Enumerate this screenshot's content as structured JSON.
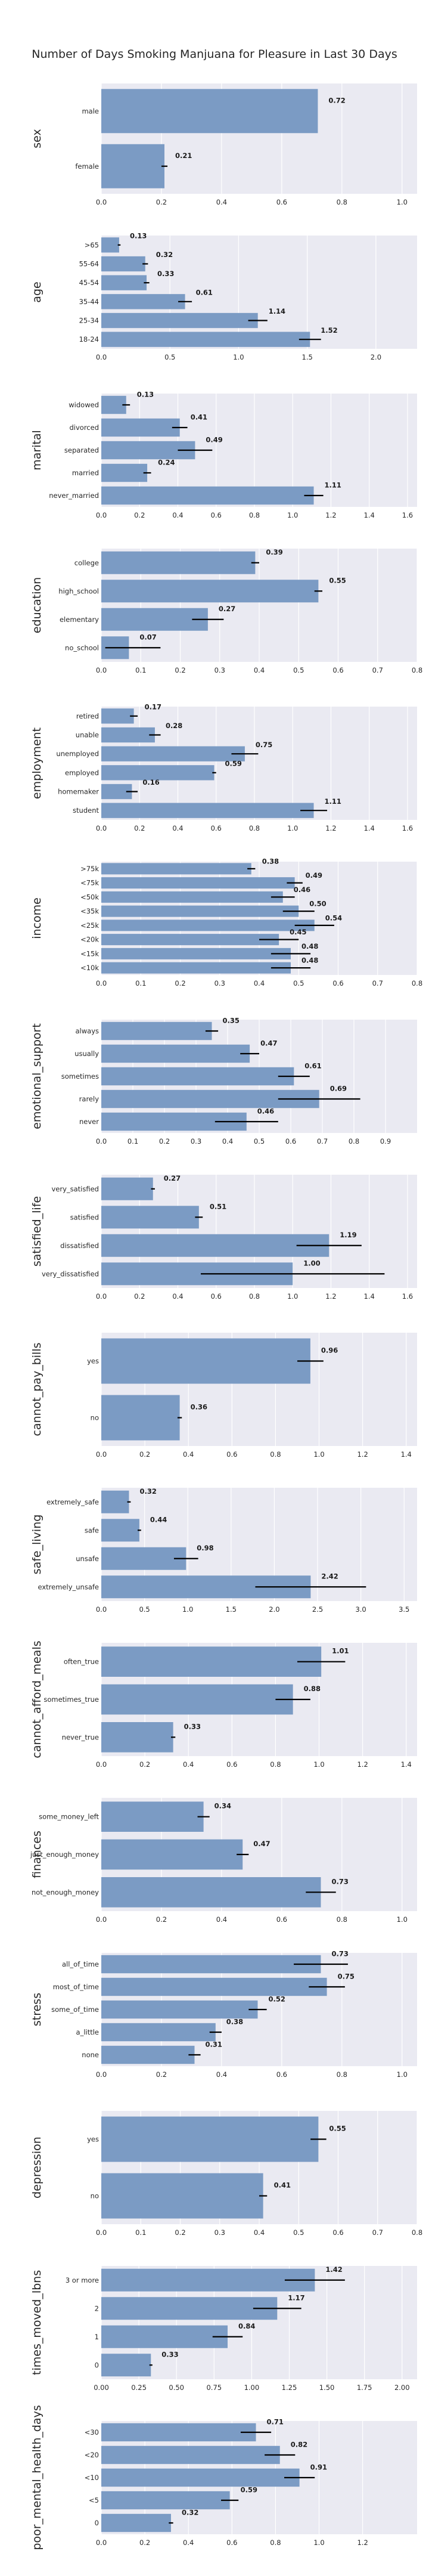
{
  "page": {
    "title": "Number of Days Smoking Manjuana for Pleasure in Last 30 Days"
  },
  "colors": {
    "background": "#ffffff",
    "panel": "#eaeaf2",
    "grid": "#ffffff",
    "bar": "#7b9bc4",
    "errorbar": "#000000"
  },
  "chart_data": [
    {
      "type": "bar",
      "orientation": "horizontal",
      "ylabel": "sex",
      "categories": [
        "male",
        "female"
      ],
      "values": [
        0.72,
        0.21
      ],
      "value_labels": [
        "0.72",
        "0.21"
      ],
      "errors": [
        [
          0.72,
          0.72
        ],
        [
          0.2,
          0.22
        ]
      ],
      "xlim": [
        0,
        1.05
      ],
      "xticks": [
        0.0,
        0.2,
        0.4,
        0.6,
        0.8,
        1.0
      ],
      "xtick_labels": [
        "0.0",
        "0.2",
        "0.4",
        "0.6",
        "0.8",
        "1.0"
      ]
    },
    {
      "type": "bar",
      "orientation": "horizontal",
      "ylabel": "age",
      "categories": [
        ">65",
        "55-64",
        "45-54",
        "35-44",
        "25-34",
        "18-24"
      ],
      "values": [
        0.13,
        0.32,
        0.33,
        0.61,
        1.14,
        1.52
      ],
      "value_labels": [
        "0.13",
        "0.32",
        "0.33",
        "0.61",
        "1.14",
        "1.52"
      ],
      "errors": [
        [
          0.12,
          0.14
        ],
        [
          0.3,
          0.34
        ],
        [
          0.31,
          0.35
        ],
        [
          0.56,
          0.66
        ],
        [
          1.07,
          1.21
        ],
        [
          1.44,
          1.6
        ]
      ],
      "xlim": [
        0,
        2.3
      ],
      "xticks": [
        0.0,
        0.5,
        1.0,
        1.5,
        2.0
      ],
      "xtick_labels": [
        "0.0",
        "0.5",
        "1.0",
        "1.5",
        "2.0"
      ]
    },
    {
      "type": "bar",
      "orientation": "horizontal",
      "ylabel": "marital",
      "categories": [
        "widowed",
        "divorced",
        "separated",
        "married",
        "never_married"
      ],
      "values": [
        0.13,
        0.41,
        0.49,
        0.24,
        1.11
      ],
      "value_labels": [
        "0.13",
        "0.41",
        "0.49",
        "0.24",
        "1.11"
      ],
      "errors": [
        [
          0.11,
          0.15
        ],
        [
          0.37,
          0.45
        ],
        [
          0.4,
          0.58
        ],
        [
          0.22,
          0.26
        ],
        [
          1.06,
          1.16
        ]
      ],
      "xlim": [
        0,
        1.65
      ],
      "xticks": [
        0.0,
        0.2,
        0.4,
        0.6,
        0.8,
        1.0,
        1.2,
        1.4,
        1.6
      ],
      "xtick_labels": [
        "0.0",
        "0.2",
        "0.4",
        "0.6",
        "0.8",
        "1.0",
        "1.2",
        "1.4",
        "1.6"
      ]
    },
    {
      "type": "bar",
      "orientation": "horizontal",
      "ylabel": "education",
      "categories": [
        "college",
        "high_school",
        "elementary",
        "no_school"
      ],
      "values": [
        0.39,
        0.55,
        0.27,
        0.07
      ],
      "value_labels": [
        "0.39",
        "0.55",
        "0.27",
        "0.07"
      ],
      "errors": [
        [
          0.38,
          0.4
        ],
        [
          0.54,
          0.56
        ],
        [
          0.23,
          0.31
        ],
        [
          0.01,
          0.15
        ]
      ],
      "xlim": [
        0,
        0.8
      ],
      "xticks": [
        0.0,
        0.1,
        0.2,
        0.3,
        0.4,
        0.5,
        0.6,
        0.7,
        0.8
      ],
      "xtick_labels": [
        "0.0",
        "0.1",
        "0.2",
        "0.3",
        "0.4",
        "0.5",
        "0.6",
        "0.7",
        "0.8"
      ]
    },
    {
      "type": "bar",
      "orientation": "horizontal",
      "ylabel": "employment",
      "categories": [
        "retired",
        "unable",
        "unemployed",
        "employed",
        "homemaker",
        "student"
      ],
      "values": [
        0.17,
        0.28,
        0.75,
        0.59,
        0.16,
        1.11
      ],
      "value_labels": [
        "0.17",
        "0.28",
        "0.75",
        "0.59",
        "0.16",
        "1.11"
      ],
      "errors": [
        [
          0.15,
          0.19
        ],
        [
          0.25,
          0.31
        ],
        [
          0.68,
          0.82
        ],
        [
          0.58,
          0.6
        ],
        [
          0.13,
          0.19
        ],
        [
          1.04,
          1.18
        ]
      ],
      "xlim": [
        0,
        1.65
      ],
      "xticks": [
        0.0,
        0.2,
        0.4,
        0.6,
        0.8,
        1.0,
        1.2,
        1.4,
        1.6
      ],
      "xtick_labels": [
        "0.0",
        "0.2",
        "0.4",
        "0.6",
        "0.8",
        "1.0",
        "1.2",
        "1.4",
        "1.6"
      ]
    },
    {
      "type": "bar",
      "orientation": "horizontal",
      "ylabel": "income",
      "categories": [
        ">75k",
        "<75k",
        "<50k",
        "<35k",
        "<25k",
        "<20k",
        "<15k",
        "<10k"
      ],
      "values": [
        0.38,
        0.49,
        0.46,
        0.5,
        0.54,
        0.45,
        0.48,
        0.48
      ],
      "value_labels": [
        "0.38",
        "0.49",
        "0.46",
        "0.50",
        "0.54",
        "0.45",
        "0.48",
        "0.48"
      ],
      "errors": [
        [
          0.37,
          0.39
        ],
        [
          0.47,
          0.51
        ],
        [
          0.43,
          0.49
        ],
        [
          0.46,
          0.54
        ],
        [
          0.49,
          0.59
        ],
        [
          0.4,
          0.5
        ],
        [
          0.43,
          0.53
        ],
        [
          0.43,
          0.53
        ]
      ],
      "xlim": [
        0,
        0.8
      ],
      "xticks": [
        0.0,
        0.1,
        0.2,
        0.3,
        0.4,
        0.5,
        0.6,
        0.7,
        0.8
      ],
      "xtick_labels": [
        "0.0",
        "0.1",
        "0.2",
        "0.3",
        "0.4",
        "0.5",
        "0.6",
        "0.7",
        "0.8"
      ]
    },
    {
      "type": "bar",
      "orientation": "horizontal",
      "ylabel": "emotional_support",
      "categories": [
        "always",
        "usually",
        "sometimes",
        "rarely",
        "never"
      ],
      "values": [
        0.35,
        0.47,
        0.61,
        0.69,
        0.46
      ],
      "value_labels": [
        "0.35",
        "0.47",
        "0.61",
        "0.69",
        "0.46"
      ],
      "errors": [
        [
          0.33,
          0.37
        ],
        [
          0.44,
          0.5
        ],
        [
          0.56,
          0.66
        ],
        [
          0.56,
          0.82
        ],
        [
          0.36,
          0.56
        ]
      ],
      "xlim": [
        0,
        1.0
      ],
      "xticks": [
        0.0,
        0.1,
        0.2,
        0.3,
        0.4,
        0.5,
        0.6,
        0.7,
        0.8,
        0.9
      ],
      "xtick_labels": [
        "0.0",
        "0.1",
        "0.2",
        "0.3",
        "0.4",
        "0.5",
        "0.6",
        "0.7",
        "0.8",
        "0.9"
      ]
    },
    {
      "type": "bar",
      "orientation": "horizontal",
      "ylabel": "satisfied_life",
      "categories": [
        "very_satisfied",
        "satisfied",
        "dissatisfied",
        "very_dissatisfied"
      ],
      "values": [
        0.27,
        0.51,
        1.19,
        1.0
      ],
      "value_labels": [
        "0.27",
        "0.51",
        "1.19",
        "1.00"
      ],
      "errors": [
        [
          0.26,
          0.28
        ],
        [
          0.49,
          0.53
        ],
        [
          1.02,
          1.36
        ],
        [
          0.52,
          1.48
        ]
      ],
      "xlim": [
        0,
        1.65
      ],
      "xticks": [
        0.0,
        0.2,
        0.4,
        0.6,
        0.8,
        1.0,
        1.2,
        1.4,
        1.6
      ],
      "xtick_labels": [
        "0.0",
        "0.2",
        "0.4",
        "0.6",
        "0.8",
        "1.0",
        "1.2",
        "1.4",
        "1.6"
      ]
    },
    {
      "type": "bar",
      "orientation": "horizontal",
      "ylabel": "cannot_pay_bills",
      "categories": [
        "yes",
        "no"
      ],
      "values": [
        0.96,
        0.36
      ],
      "value_labels": [
        "0.96",
        "0.36"
      ],
      "errors": [
        [
          0.9,
          1.02
        ],
        [
          0.35,
          0.37
        ]
      ],
      "xlim": [
        0,
        1.45
      ],
      "xticks": [
        0.0,
        0.2,
        0.4,
        0.6,
        0.8,
        1.0,
        1.2,
        1.4
      ],
      "xtick_labels": [
        "0.0",
        "0.2",
        "0.4",
        "0.6",
        "0.8",
        "1.0",
        "1.2",
        "1.4"
      ]
    },
    {
      "type": "bar",
      "orientation": "horizontal",
      "ylabel": "safe_living",
      "categories": [
        "extremely_safe",
        "safe",
        "unsafe",
        "extremely_unsafe"
      ],
      "values": [
        0.32,
        0.44,
        0.98,
        2.42
      ],
      "value_labels": [
        "0.32",
        "0.44",
        "0.98",
        "2.42"
      ],
      "errors": [
        [
          0.3,
          0.34
        ],
        [
          0.42,
          0.46
        ],
        [
          0.84,
          1.12
        ],
        [
          1.78,
          3.06
        ]
      ],
      "xlim": [
        0,
        3.65
      ],
      "xticks": [
        0.0,
        0.5,
        1.0,
        1.5,
        2.0,
        2.5,
        3.0,
        3.5
      ],
      "xtick_labels": [
        "0.0",
        "0.5",
        "1.0",
        "1.5",
        "2.0",
        "2.5",
        "3.0",
        "3.5"
      ]
    },
    {
      "type": "bar",
      "orientation": "horizontal",
      "ylabel": "cannot_afford_meals",
      "categories": [
        "often_true",
        "sometimes_true",
        "never_true"
      ],
      "values": [
        1.01,
        0.88,
        0.33
      ],
      "value_labels": [
        "1.01",
        "0.88",
        "0.33"
      ],
      "errors": [
        [
          0.9,
          1.12
        ],
        [
          0.8,
          0.96
        ],
        [
          0.32,
          0.34
        ]
      ],
      "xlim": [
        0,
        1.45
      ],
      "xticks": [
        0.0,
        0.2,
        0.4,
        0.6,
        0.8,
        1.0,
        1.2,
        1.4
      ],
      "xtick_labels": [
        "0.0",
        "0.2",
        "0.4",
        "0.6",
        "0.8",
        "1.0",
        "1.2",
        "1.4"
      ]
    },
    {
      "type": "bar",
      "orientation": "horizontal",
      "ylabel": "finances",
      "categories": [
        "some_money_left",
        "just_enough_money",
        "not_enough_money"
      ],
      "values": [
        0.34,
        0.47,
        0.73
      ],
      "value_labels": [
        "0.34",
        "0.47",
        "0.73"
      ],
      "errors": [
        [
          0.32,
          0.36
        ],
        [
          0.45,
          0.49
        ],
        [
          0.68,
          0.78
        ]
      ],
      "xlim": [
        0,
        1.05
      ],
      "xticks": [
        0.0,
        0.2,
        0.4,
        0.6,
        0.8,
        1.0
      ],
      "xtick_labels": [
        "0.0",
        "0.2",
        "0.4",
        "0.6",
        "0.8",
        "1.0"
      ]
    },
    {
      "type": "bar",
      "orientation": "horizontal",
      "ylabel": "stress",
      "categories": [
        "all_of_time",
        "most_of_time",
        "some_of_time",
        "a_little",
        "none"
      ],
      "values": [
        0.73,
        0.75,
        0.52,
        0.38,
        0.31
      ],
      "value_labels": [
        "0.73",
        "0.75",
        "0.52",
        "0.38",
        "0.31"
      ],
      "errors": [
        [
          0.64,
          0.82
        ],
        [
          0.69,
          0.81
        ],
        [
          0.49,
          0.55
        ],
        [
          0.36,
          0.4
        ],
        [
          0.29,
          0.33
        ]
      ],
      "xlim": [
        0,
        1.05
      ],
      "xticks": [
        0.0,
        0.2,
        0.4,
        0.6,
        0.8,
        1.0
      ],
      "xtick_labels": [
        "0.0",
        "0.2",
        "0.4",
        "0.6",
        "0.8",
        "1.0"
      ]
    },
    {
      "type": "bar",
      "orientation": "horizontal",
      "ylabel": "depression",
      "categories": [
        "yes",
        "no"
      ],
      "values": [
        0.55,
        0.41
      ],
      "value_labels": [
        "0.55",
        "0.41"
      ],
      "errors": [
        [
          0.53,
          0.57
        ],
        [
          0.4,
          0.42
        ]
      ],
      "xlim": [
        0,
        0.8
      ],
      "xticks": [
        0.0,
        0.1,
        0.2,
        0.3,
        0.4,
        0.5,
        0.6,
        0.7,
        0.8
      ],
      "xtick_labels": [
        "0.0",
        "0.1",
        "0.2",
        "0.3",
        "0.4",
        "0.5",
        "0.6",
        "0.7",
        "0.8"
      ]
    },
    {
      "type": "bar",
      "orientation": "horizontal",
      "ylabel": "times_moved_lbns",
      "categories": [
        "3 or more",
        "2",
        "1",
        "0"
      ],
      "values": [
        1.42,
        1.17,
        0.84,
        0.33
      ],
      "value_labels": [
        "1.42",
        "1.17",
        "0.84",
        "0.33"
      ],
      "errors": [
        [
          1.22,
          1.62
        ],
        [
          1.01,
          1.33
        ],
        [
          0.74,
          0.94
        ],
        [
          0.32,
          0.34
        ]
      ],
      "xlim": [
        0,
        2.1
      ],
      "xticks": [
        0.0,
        0.25,
        0.5,
        0.75,
        1.0,
        1.25,
        1.5,
        1.75,
        2.0
      ],
      "xtick_labels": [
        "0.00",
        "0.25",
        "0.50",
        "0.75",
        "1.00",
        "1.25",
        "1.50",
        "1.75",
        "2.00"
      ]
    },
    {
      "type": "bar",
      "orientation": "horizontal",
      "ylabel": "poor_mental_health_days",
      "categories": [
        "<30",
        "<20",
        "<10",
        "<5",
        "0"
      ],
      "values": [
        0.71,
        0.82,
        0.91,
        0.59,
        0.32
      ],
      "value_labels": [
        "0.71",
        "0.82",
        "0.91",
        "0.59",
        "0.32"
      ],
      "errors": [
        [
          0.64,
          0.78
        ],
        [
          0.75,
          0.89
        ],
        [
          0.84,
          0.98
        ],
        [
          0.55,
          0.63
        ],
        [
          0.31,
          0.33
        ]
      ],
      "xlim": [
        0,
        1.45
      ],
      "xticks": [
        0.0,
        0.2,
        0.4,
        0.6,
        0.8,
        1.0,
        1.2
      ],
      "xtick_labels": [
        "0.0",
        "0.2",
        "0.4",
        "0.6",
        "0.8",
        "1.0",
        "1.2"
      ]
    }
  ]
}
